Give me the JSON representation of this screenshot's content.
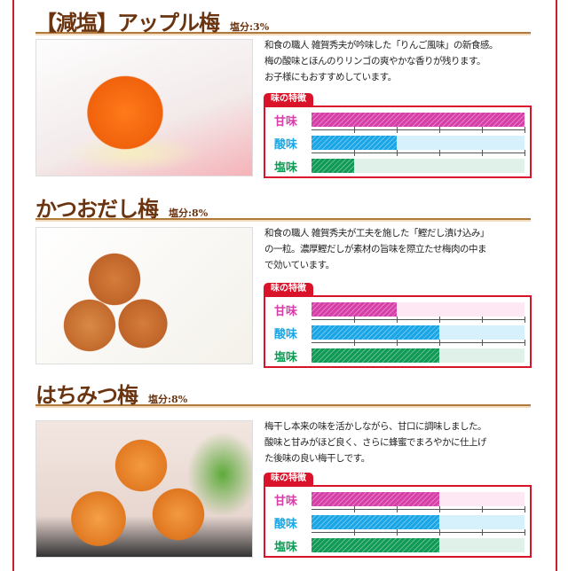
{
  "tab_label": "味の特徴",
  "taste_labels": {
    "sweet": "甘味",
    "sour": "酸味",
    "salty": "塩味"
  },
  "scale_max": 5,
  "colors": {
    "sweet": "#d63ea8",
    "sweet_bg": "#fde8f4",
    "sour": "#1aa6e6",
    "sour_bg": "#d6f1fb",
    "salty": "#0f9a55",
    "salty_bg": "#dff1e8",
    "accent": "#d9132a",
    "title": "#6b3410"
  },
  "products": [
    {
      "name": "【減塩】アップル梅",
      "salt": "塩分:3%",
      "desc": [
        "和食の職人 雑賀秀夫が吟味した「りんご風味」の新食感。",
        "梅の酸味とほんのりリンゴの爽やかな香りが残ります。",
        "お子様にもおすすめしています。"
      ],
      "levels": {
        "sweet": 5,
        "sour": 2,
        "salty": 1
      }
    },
    {
      "name": "かつおだし梅",
      "salt": "塩分:8%",
      "desc": [
        "和食の職人 雑賀秀夫が工夫を施した「鰹だし漬け込み」",
        "の一粒。濃厚鰹だしが素材の旨味を際立たせ梅肉の中ま",
        "で効いています。"
      ],
      "levels": {
        "sweet": 2,
        "sour": 3,
        "salty": 3
      }
    },
    {
      "name": "はちみつ梅",
      "salt": "塩分:8%",
      "desc": [
        "梅干し本来の味を活かしながら、甘口に調味しました。",
        "酸味と甘みがほど良く、さらに蜂蜜でまろやかに仕上げ",
        "た後味の良い梅干しです。"
      ],
      "levels": {
        "sweet": 3,
        "sour": 3,
        "salty": 3
      }
    }
  ]
}
